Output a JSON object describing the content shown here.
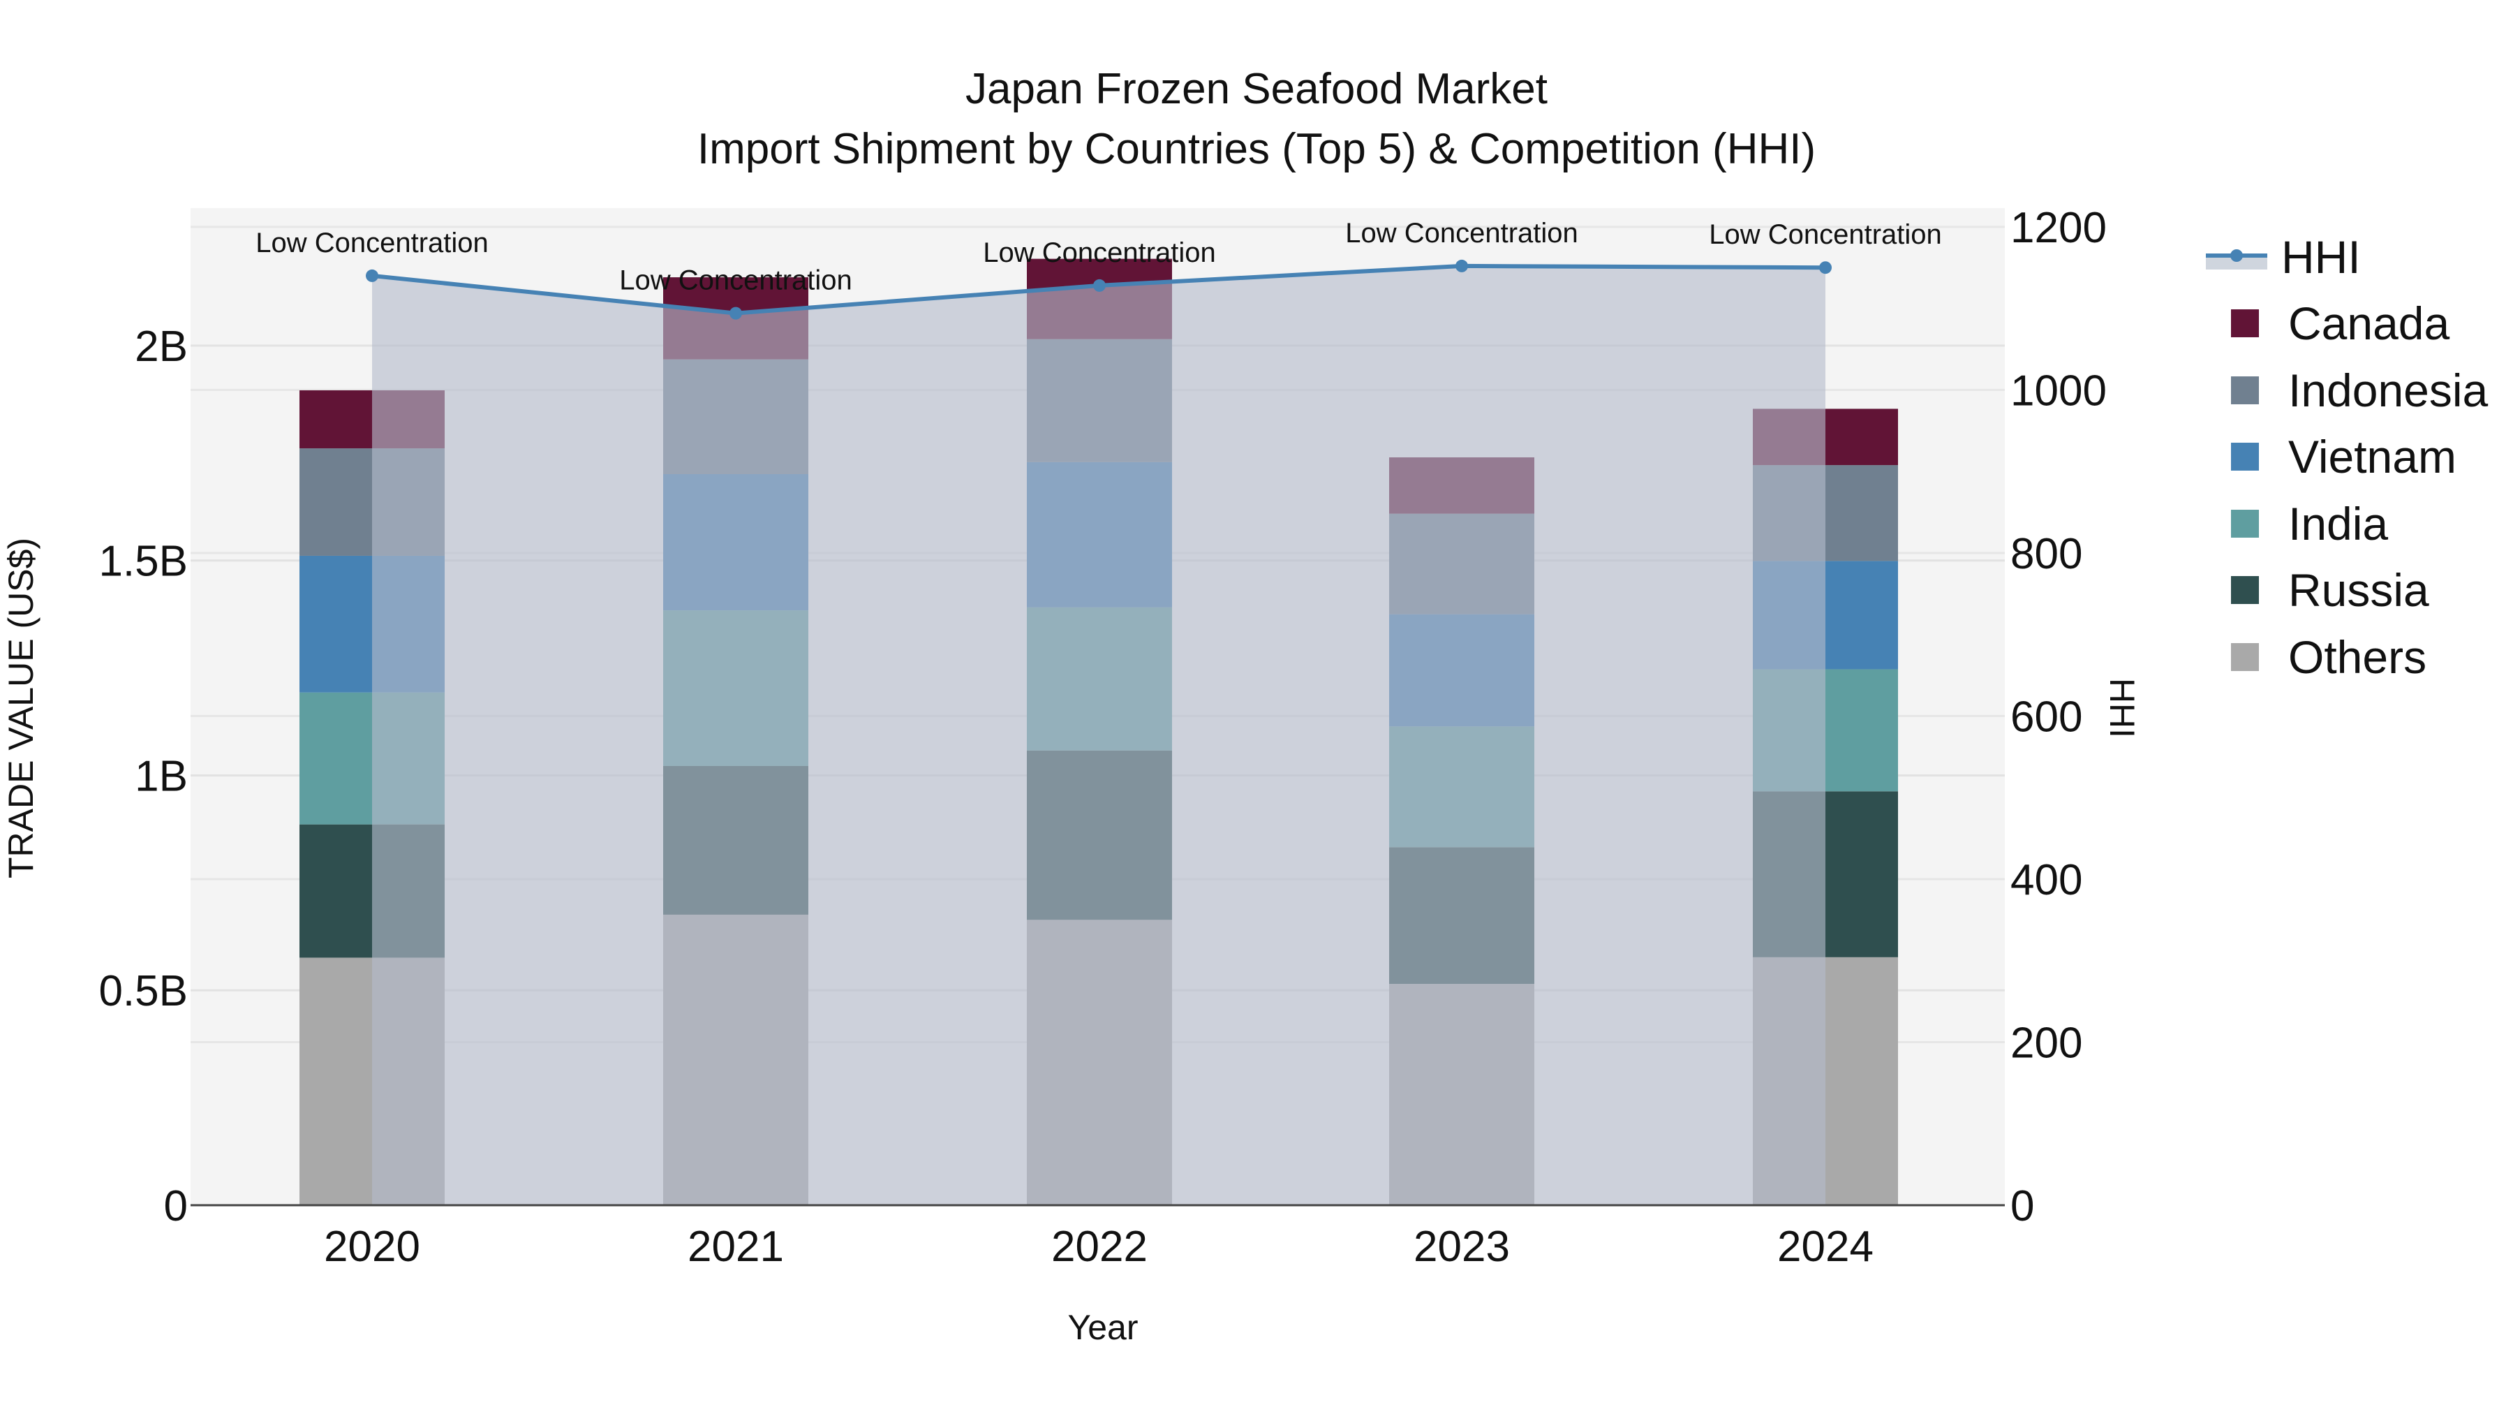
{
  "title": {
    "line1": "Japan Frozen Seafood Market",
    "line2": "Import Shipment by Countries (Top 5) & Competition (HHI)"
  },
  "axes": {
    "x_title": "Year",
    "y_title": "TRADE VALUE (US$)",
    "y2_title": "HHI",
    "y_ticks": [
      {
        "value": 0,
        "label": "0"
      },
      {
        "value": 0.5,
        "label": "0.5B"
      },
      {
        "value": 1.0,
        "label": "1B"
      },
      {
        "value": 1.5,
        "label": "1.5B"
      },
      {
        "value": 2.0,
        "label": "2B"
      }
    ],
    "y2_ticks": [
      {
        "value": 0,
        "label": "0"
      },
      {
        "value": 200,
        "label": "200"
      },
      {
        "value": 400,
        "label": "400"
      },
      {
        "value": 600,
        "label": "600"
      },
      {
        "value": 800,
        "label": "800"
      },
      {
        "value": 1000,
        "label": "1000"
      },
      {
        "value": 1200,
        "label": "1200"
      }
    ]
  },
  "legend": [
    {
      "name": "HHI",
      "type": "line",
      "color": "#4682B4"
    },
    {
      "name": "Canada",
      "type": "bar",
      "color": "#611436"
    },
    {
      "name": "Indonesia",
      "type": "bar",
      "color": "#708090"
    },
    {
      "name": "Vietnam",
      "type": "bar",
      "color": "#4682B4"
    },
    {
      "name": "India",
      "type": "bar",
      "color": "#5F9EA0"
    },
    {
      "name": "Russia",
      "type": "bar",
      "color": "#2F4F4F"
    },
    {
      "name": "Others",
      "type": "bar",
      "color": "#A9A9A9"
    }
  ],
  "chart_data": {
    "type": "bar",
    "stacked": true,
    "title": "Japan Frozen Seafood Market - Import Shipment by Countries (Top 5) & Competition (HHI)",
    "xlabel": "Year",
    "ylabel": "TRADE VALUE (US$)",
    "y2label": "HHI",
    "categories": [
      "2020",
      "2021",
      "2022",
      "2023",
      "2024"
    ],
    "ylim": [
      0,
      2.32
    ],
    "y_unit": "B",
    "y2lim": [
      0,
      1223
    ],
    "grid": true,
    "legend_position": "right",
    "series": [
      {
        "name": "Others",
        "color": "#A9A9A9",
        "values": [
          0.576,
          0.676,
          0.664,
          0.515,
          0.577
        ]
      },
      {
        "name": "Russia",
        "color": "#2F4F4F",
        "values": [
          0.31,
          0.346,
          0.394,
          0.318,
          0.386
        ]
      },
      {
        "name": "India",
        "color": "#5F9EA0",
        "values": [
          0.307,
          0.362,
          0.333,
          0.281,
          0.284
        ]
      },
      {
        "name": "Vietnam",
        "color": "#4682B4",
        "values": [
          0.318,
          0.317,
          0.338,
          0.261,
          0.252
        ]
      },
      {
        "name": "Indonesia",
        "color": "#708090",
        "values": [
          0.25,
          0.267,
          0.286,
          0.234,
          0.223
        ]
      },
      {
        "name": "Canada",
        "color": "#611436",
        "values": [
          0.135,
          0.191,
          0.187,
          0.131,
          0.131
        ]
      }
    ],
    "line_series": {
      "name": "HHI",
      "axis": "right",
      "color": "#4682B4",
      "fill": true,
      "values": [
        1140,
        1094,
        1128,
        1152,
        1150
      ],
      "annotations": [
        "Low Concentration",
        "Low Concentration",
        "Low Concentration",
        "Low Concentration",
        "Low Concentration"
      ]
    }
  }
}
